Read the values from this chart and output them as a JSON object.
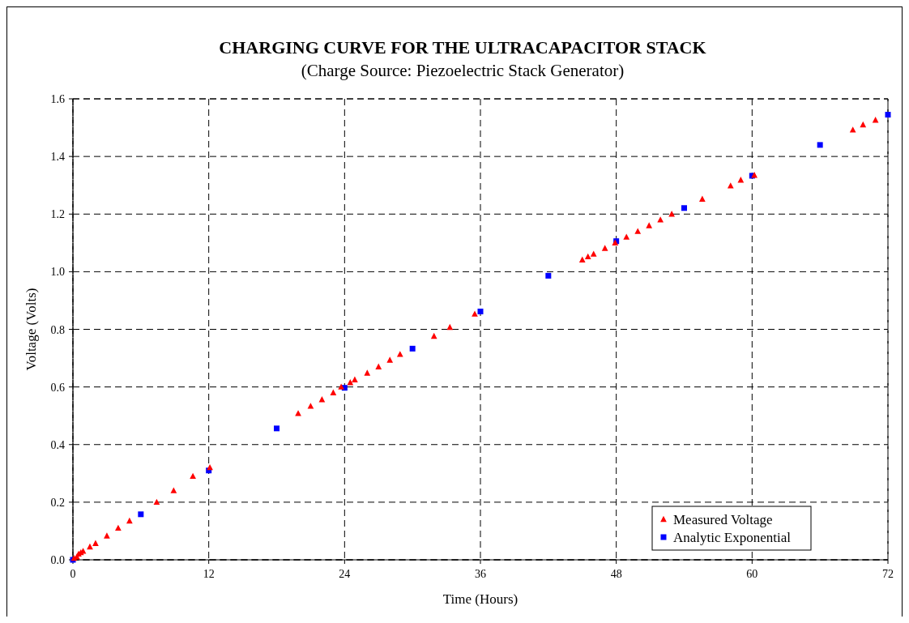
{
  "chart_data": {
    "type": "scatter",
    "title": "CHARGING CURVE FOR THE ULTRACAPACITOR STACK",
    "subtitle": "(Charge Source: Piezoelectric Stack Generator)",
    "xlabel": "Time (Hours)",
    "ylabel": "Voltage (Volts)",
    "xlim": [
      0,
      72
    ],
    "xticks": [
      0,
      12,
      24,
      36,
      48,
      60,
      72
    ],
    "ylim": [
      0,
      1.6
    ],
    "yticks": [
      {
        "value": 0,
        "label": "0.0"
      },
      {
        "value": 0.2,
        "label": "0.2"
      },
      {
        "value": 0.4,
        "label": "0.4"
      },
      {
        "value": 0.6,
        "label": "0.6"
      },
      {
        "value": 0.8,
        "label": "0.8"
      },
      {
        "value": 1,
        "label": "1.0"
      },
      {
        "value": 1.2,
        "label": "1.2"
      },
      {
        "value": 1.4,
        "label": "1.4"
      },
      {
        "value": 1.6,
        "label": "1.6"
      }
    ],
    "grid": true,
    "legend": "bottom right",
    "series": [
      {
        "name": "Measured Voltage",
        "color": "#ff0000",
        "marker": "triangle",
        "x": [
          0.1,
          0.35,
          0.5,
          0.7,
          0.9,
          1.5,
          2,
          3,
          4,
          5,
          7.4,
          8.9,
          10.6,
          12.1,
          19.9,
          21,
          22,
          23,
          23.7,
          24.5,
          24.9,
          26,
          27,
          28,
          28.9,
          31.9,
          33.3,
          35.5,
          45,
          45.5,
          46,
          47,
          47.9,
          48.9,
          49.9,
          50.9,
          51.9,
          52.9,
          55.6,
          58.1,
          59,
          60.2,
          68.9,
          69.8,
          70.9
        ],
        "values": [
          0.005,
          0.01,
          0.02,
          0.025,
          0.03,
          0.045,
          0.057,
          0.083,
          0.11,
          0.135,
          0.2,
          0.24,
          0.29,
          0.32,
          0.508,
          0.533,
          0.556,
          0.58,
          0.6,
          0.615,
          0.625,
          0.648,
          0.67,
          0.693,
          0.713,
          0.776,
          0.807,
          0.853,
          1.041,
          1.052,
          1.061,
          1.081,
          1.1,
          1.12,
          1.14,
          1.16,
          1.18,
          1.2,
          1.252,
          1.298,
          1.318,
          1.335,
          1.492,
          1.51,
          1.526
        ]
      },
      {
        "name": "Analytic Exponential",
        "color": "#0000ff",
        "marker": "square",
        "x": [
          0,
          6,
          12,
          18,
          24,
          30,
          36,
          42,
          48,
          54,
          60,
          66,
          72
        ],
        "values": [
          0,
          0.158,
          0.31,
          0.456,
          0.597,
          0.733,
          0.862,
          0.986,
          1.106,
          1.221,
          1.333,
          1.44,
          1.545
        ]
      }
    ]
  }
}
